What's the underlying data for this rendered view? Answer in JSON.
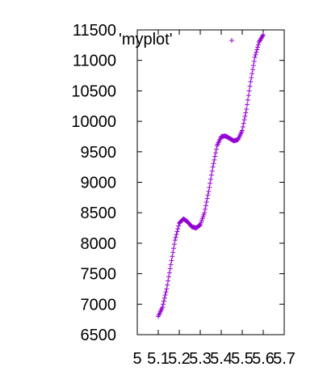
{
  "chart_data": {
    "type": "scatter",
    "title": "",
    "xlabel": "",
    "ylabel": "",
    "xlim": [
      5.0,
      5.7
    ],
    "ylim": [
      6500,
      11500
    ],
    "x_ticks": [
      5.0,
      5.1,
      5.2,
      5.3,
      5.4,
      5.5,
      5.6,
      5.7
    ],
    "x_tick_labels": [
      "5",
      "5.1",
      "5.2",
      "5.3",
      "5.4",
      "5.5",
      "5.6",
      "5.7"
    ],
    "y_ticks": [
      6500,
      7000,
      7500,
      8000,
      8500,
      9000,
      9500,
      10000,
      10500,
      11000,
      11500
    ],
    "y_tick_labels": [
      "6500",
      "7000",
      "7500",
      "8000",
      "8500",
      "9000",
      "9500",
      "10000",
      "10500",
      "11000",
      "11500"
    ],
    "grid": false,
    "legend": "top-left",
    "marker": "plus",
    "series": [
      {
        "name": "'myplot'",
        "color": "#9400d3",
        "points": [
          [
            5.1,
            6800
          ],
          [
            5.12,
            6950
          ],
          [
            5.14,
            7250
          ],
          [
            5.16,
            7650
          ],
          [
            5.18,
            8050
          ],
          [
            5.2,
            8330
          ],
          [
            5.22,
            8400
          ],
          [
            5.24,
            8350
          ],
          [
            5.26,
            8270
          ],
          [
            5.28,
            8250
          ],
          [
            5.3,
            8300
          ],
          [
            5.32,
            8500
          ],
          [
            5.34,
            8850
          ],
          [
            5.36,
            9250
          ],
          [
            5.38,
            9600
          ],
          [
            5.4,
            9750
          ],
          [
            5.42,
            9760
          ],
          [
            5.44,
            9720
          ],
          [
            5.46,
            9680
          ],
          [
            5.48,
            9700
          ],
          [
            5.5,
            9850
          ],
          [
            5.52,
            10200
          ],
          [
            5.54,
            10650
          ],
          [
            5.56,
            11050
          ],
          [
            5.58,
            11300
          ],
          [
            5.6,
            11420
          ]
        ]
      }
    ]
  }
}
